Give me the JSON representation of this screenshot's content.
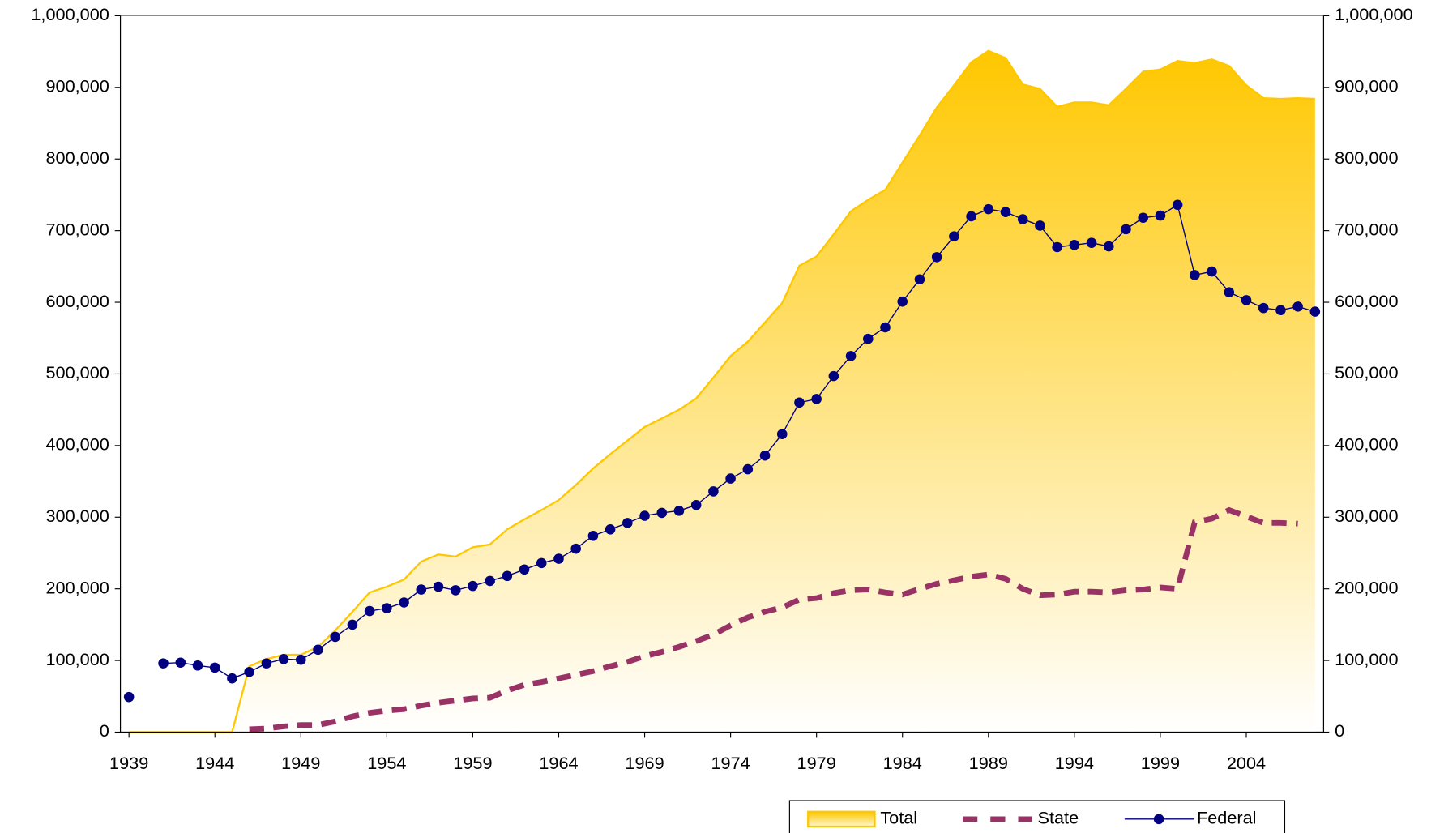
{
  "chart_data": {
    "type": "line",
    "x": [
      1939,
      1940,
      1941,
      1942,
      1943,
      1944,
      1945,
      1946,
      1947,
      1948,
      1949,
      1950,
      1951,
      1952,
      1953,
      1954,
      1955,
      1956,
      1957,
      1958,
      1959,
      1960,
      1961,
      1962,
      1963,
      1964,
      1965,
      1966,
      1967,
      1968,
      1969,
      1970,
      1971,
      1972,
      1973,
      1974,
      1975,
      1976,
      1977,
      1978,
      1979,
      1980,
      1981,
      1982,
      1983,
      1984,
      1985,
      1986,
      1987,
      1988,
      1989,
      1990,
      1991,
      1992,
      1993,
      1994,
      1995,
      1996,
      1997,
      1998,
      1999,
      2000,
      2001,
      2002,
      2003,
      2004,
      2005,
      2006,
      2007,
      2008
    ],
    "xlim": [
      1938.5,
      2008.5
    ],
    "xticks": [
      1939,
      1944,
      1949,
      1954,
      1959,
      1964,
      1969,
      1974,
      1979,
      1984,
      1989,
      1994,
      1999,
      2004
    ],
    "ylim": [
      0,
      1000000
    ],
    "yticks": [
      0,
      {
        "value": 100000,
        "label": "100,000"
      },
      {
        "value": 200000,
        "label": "200,000"
      },
      {
        "value": 300000,
        "label": "300,000"
      },
      {
        "value": 400000,
        "label": "400,000"
      },
      {
        "value": 500000,
        "label": "500,000"
      },
      {
        "value": 600000,
        "label": "600,000"
      },
      {
        "value": 700000,
        "label": "700,000"
      },
      {
        "value": 800000,
        "label": "800,000"
      },
      {
        "value": 900000,
        "label": "900,000"
      },
      {
        "value": 1000000,
        "label": "1,000,000"
      }
    ],
    "y2lim": [
      0,
      1000000
    ],
    "y2ticks": [
      0,
      {
        "value": 100000,
        "label": "100,000"
      },
      {
        "value": 200000,
        "label": "200,000"
      },
      {
        "value": 300000,
        "label": "300,000"
      },
      {
        "value": 400000,
        "label": "400,000"
      },
      {
        "value": 500000,
        "label": "500,000"
      },
      {
        "value": 600000,
        "label": "600,000"
      },
      {
        "value": 700000,
        "label": "700,000"
      },
      {
        "value": 800000,
        "label": "800,000"
      },
      {
        "value": 900000,
        "label": "900,000"
      },
      {
        "value": 1000000,
        "label": "1,000,000"
      }
    ],
    "legend": "bottom-right",
    "series": [
      {
        "name": "Total",
        "style": "area",
        "color": "#FFC700",
        "values": [
          0,
          0,
          0,
          0,
          0,
          0,
          0,
          92000,
          102000,
          108000,
          108000,
          119000,
          142000,
          168000,
          195000,
          203000,
          213000,
          238000,
          248000,
          245000,
          258000,
          262000,
          283000,
          297000,
          310000,
          324000,
          345000,
          368000,
          388000,
          407000,
          426000,
          438000,
          450000,
          466000,
          495000,
          525000,
          545000,
          572000,
          599000,
          651000,
          664000,
          695000,
          727000,
          743000,
          757000,
          795000,
          833000,
          872000,
          903000,
          935000,
          951000,
          941000,
          904000,
          898000,
          873000,
          879000,
          879000,
          875000,
          898000,
          922000,
          925000,
          937000,
          934000,
          939000,
          930000,
          903000,
          885000,
          884000,
          885000,
          884000
        ]
      },
      {
        "name": "State",
        "style": "dashed",
        "color": "#993366",
        "values": [
          null,
          null,
          null,
          null,
          null,
          null,
          null,
          4000,
          5000,
          8000,
          10000,
          10000,
          15000,
          22000,
          27000,
          30000,
          32000,
          37000,
          41000,
          44000,
          47000,
          48000,
          58000,
          66000,
          70000,
          75000,
          80000,
          85000,
          92000,
          98000,
          106000,
          112000,
          119000,
          127000,
          136000,
          149000,
          160000,
          168000,
          174000,
          185000,
          187000,
          194000,
          198000,
          199000,
          195000,
          192000,
          200000,
          207000,
          212000,
          217000,
          220000,
          214000,
          200000,
          191000,
          192000,
          196000,
          196000,
          195000,
          198000,
          199000,
          202000,
          200000,
          293000,
          298000,
          310000,
          301000,
          292000,
          292000,
          291000,
          null
        ]
      },
      {
        "name": "Federal",
        "style": "marker",
        "color": "#000080",
        "values": [
          49000,
          null,
          96000,
          97000,
          93000,
          90000,
          75000,
          84000,
          96000,
          102000,
          101000,
          115000,
          133000,
          150000,
          169000,
          173000,
          181000,
          199000,
          203000,
          198000,
          204000,
          211000,
          218000,
          227000,
          236000,
          242000,
          256000,
          274000,
          283000,
          292000,
          302000,
          306000,
          309000,
          317000,
          336000,
          354000,
          367000,
          386000,
          416000,
          460000,
          465000,
          497000,
          525000,
          549000,
          565000,
          601000,
          632000,
          663000,
          692000,
          720000,
          730000,
          726000,
          716000,
          707000,
          677000,
          680000,
          683000,
          678000,
          702000,
          718000,
          721000,
          736000,
          638000,
          643000,
          614000,
          603000,
          592000,
          589000,
          594000,
          587000
        ]
      }
    ]
  }
}
